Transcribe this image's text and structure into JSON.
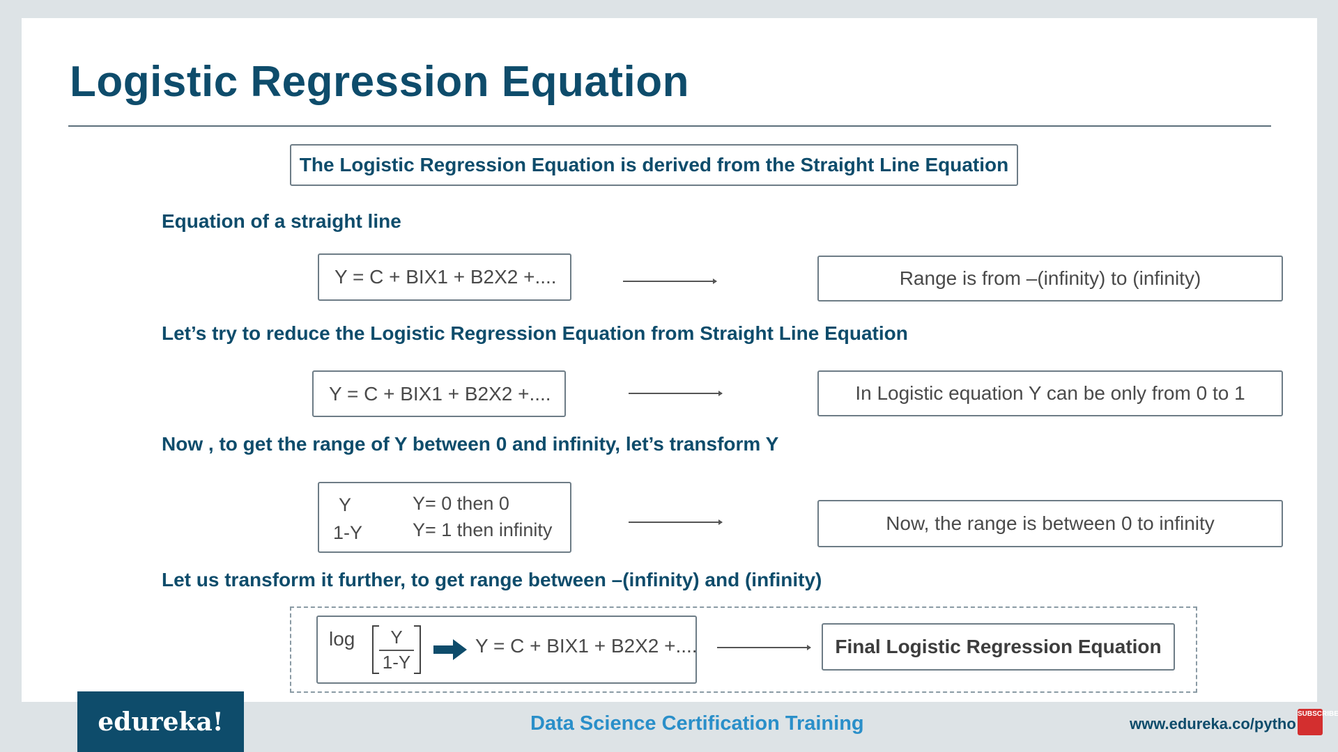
{
  "slide": {
    "title": "Logistic Regression Equation",
    "intro": "The Logistic Regression Equation is derived from the Straight Line Equation",
    "sections": [
      {
        "heading": "Equation of a straight line",
        "equation": "Y = C + BIX1 + B2X2 +....",
        "result": "Range is from –(infinity) to (infinity)"
      },
      {
        "heading": "Let’s try to reduce the Logistic Regression Equation from Straight Line Equation",
        "equation": "Y = C + BIX1 + B2X2 +....",
        "result": "In Logistic equation Y can be only from 0 to 1"
      },
      {
        "heading": "Now , to get the range of Y between 0 and infinity, let’s transform Y",
        "fraction": {
          "numerator": "Y",
          "denominator": "1-Y",
          "case_one": "Y= 0 then 0",
          "case_two": "Y= 1 then infinity"
        },
        "result": "Now, the range is between 0 to infinity"
      },
      {
        "heading": "Let us transform it further, to get range between –(infinity) and (infinity)",
        "log_word": "log",
        "frac_numerator": "Y",
        "frac_denominator": "1-Y",
        "equation": "Y = C + BIX1 + B2X2 +....",
        "result": "Final Logistic Regression Equation"
      }
    ]
  },
  "footer": {
    "logo": "edureka!",
    "course": "Data Science Certification Training",
    "url": "www.edureka.co/python",
    "subscribe_badge": "SUBSCRIBE"
  },
  "colors": {
    "title": "#0e4c6b",
    "accent_blue": "#2a8fc9",
    "subscribe_red": "#d32f2f"
  }
}
